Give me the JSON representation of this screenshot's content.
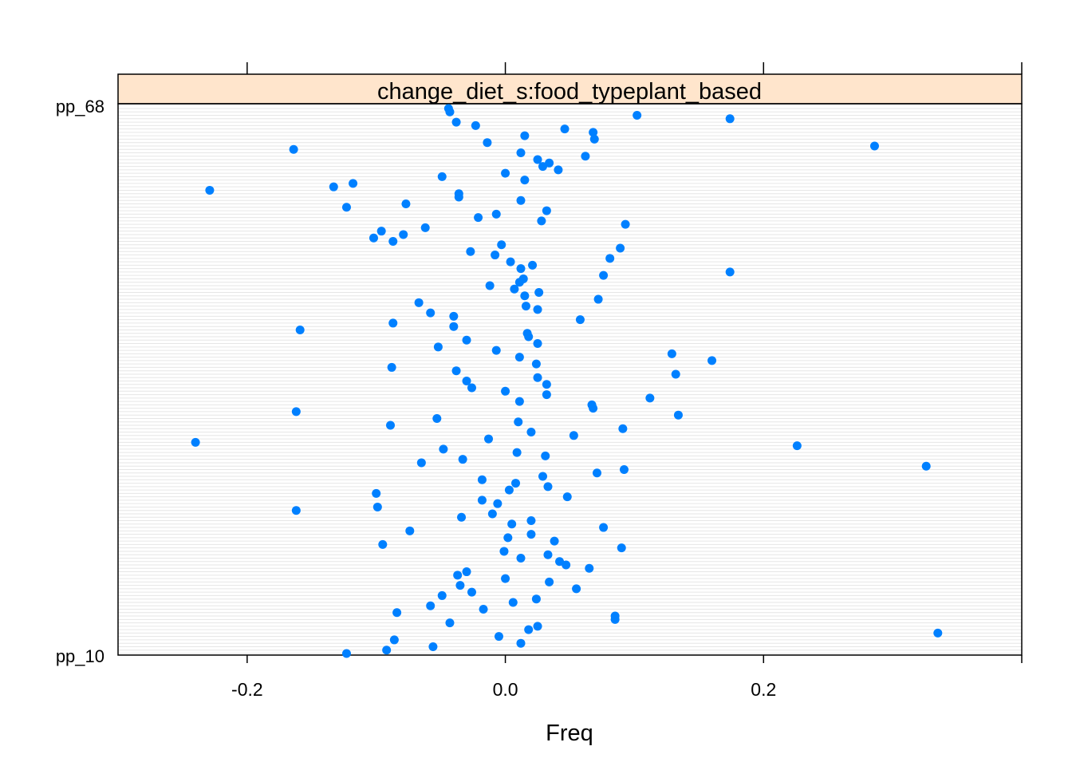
{
  "chart_data": {
    "type": "scatter",
    "panel_title": "change_diet_s:food_typeplant_based",
    "xlabel": "Freq",
    "ylabel": "",
    "xlim": [
      -0.3,
      0.4
    ],
    "xticks": [
      -0.2,
      0.0,
      0.2
    ],
    "xtick_labels": [
      "-0.2",
      "0.0",
      "0.2"
    ],
    "grid": true,
    "legend": "none",
    "point_color": "#0080ff",
    "strip_color": "#ffe5cc",
    "first_row_label": "pp_68",
    "last_row_label": "pp_10",
    "values": [
      -0.123,
      -0.092,
      -0.056,
      0.012,
      -0.086,
      -0.005,
      0.335,
      0.018,
      0.025,
      -0.043,
      0.085,
      0.085,
      -0.084,
      -0.017,
      -0.058,
      0.006,
      0.024,
      -0.049,
      -0.026,
      0.055,
      -0.035,
      0.034,
      0.0,
      -0.037,
      -0.03,
      0.065,
      0.047,
      0.042,
      0.012,
      0.033,
      -0.001,
      0.09,
      -0.095,
      0.038,
      0.002,
      0.02,
      -0.074,
      0.076,
      0.005,
      0.02,
      -0.034,
      -0.01,
      -0.162,
      -0.099,
      -0.006,
      -0.018,
      0.048,
      -0.1,
      0.003,
      0.033,
      0.008,
      -0.018,
      0.029,
      0.071,
      0.092,
      0.326,
      -0.065,
      -0.033,
      0.031,
      0.009,
      -0.048,
      0.226,
      -0.24,
      -0.013,
      0.053,
      0.02,
      0.091,
      -0.089,
      0.01,
      -0.053,
      0.134,
      -0.162,
      0.068,
      0.067,
      0.011,
      0.112,
      0.032,
      0.0,
      -0.026,
      0.032,
      -0.03,
      0.025,
      0.132,
      -0.038,
      -0.088,
      0.024,
      0.16,
      0.011,
      0.129,
      -0.007,
      -0.052,
      0.025,
      -0.03,
      0.018,
      0.017,
      -0.159,
      -0.04,
      -0.087,
      0.058,
      -0.04,
      -0.058,
      0.025,
      0.016,
      -0.067,
      0.072,
      0.015,
      0.026,
      0.007,
      -0.012,
      0.011,
      0.014,
      0.076,
      0.174,
      0.012,
      0.021,
      0.004,
      0.081,
      -0.008,
      -0.027,
      0.089,
      -0.003,
      -0.087,
      -0.102,
      -0.079,
      -0.096,
      -0.062,
      0.093,
      0.028,
      -0.021,
      -0.007,
      0.032,
      -0.123,
      -0.077,
      0.012,
      -0.036,
      -0.036,
      -0.229,
      -0.133,
      -0.118,
      0.015,
      -0.049,
      0.0,
      0.041,
      0.029,
      0.034,
      0.025,
      0.062,
      0.012,
      -0.164,
      0.286,
      -0.014,
      0.069,
      0.015,
      0.068,
      0.046,
      -0.023,
      -0.038,
      0.174,
      0.102,
      -0.043,
      -0.044
    ]
  }
}
